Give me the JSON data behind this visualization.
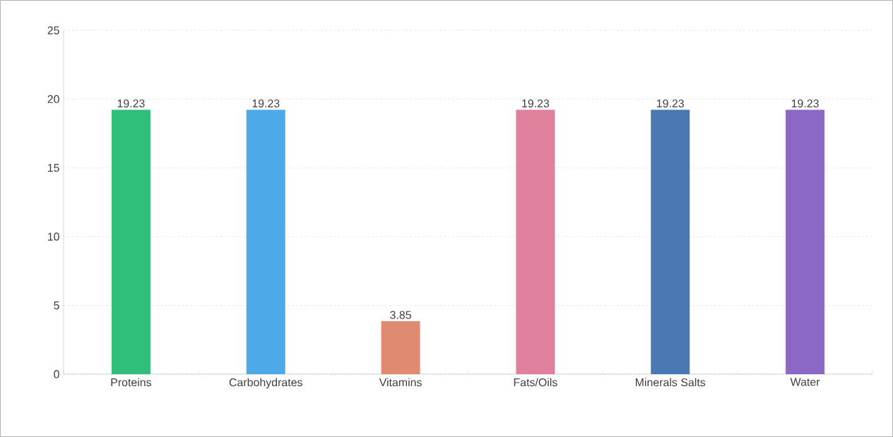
{
  "chart_data": {
    "type": "bar",
    "categories": [
      "Proteins",
      "Carbohydrates",
      "Vitamins",
      "Fats/Oils",
      "Minerals Salts",
      "Water"
    ],
    "values": [
      19.23,
      19.23,
      3.85,
      19.23,
      19.23,
      19.23
    ],
    "colors": [
      "#2fbf7a",
      "#4ea9e8",
      "#e08a72",
      "#e0809c",
      "#4a78b2",
      "#8b68c4"
    ],
    "ylim": [
      0,
      25
    ],
    "yticks": [
      0,
      5,
      10,
      15,
      20,
      25
    ],
    "grid": "y",
    "data_labels": true
  }
}
